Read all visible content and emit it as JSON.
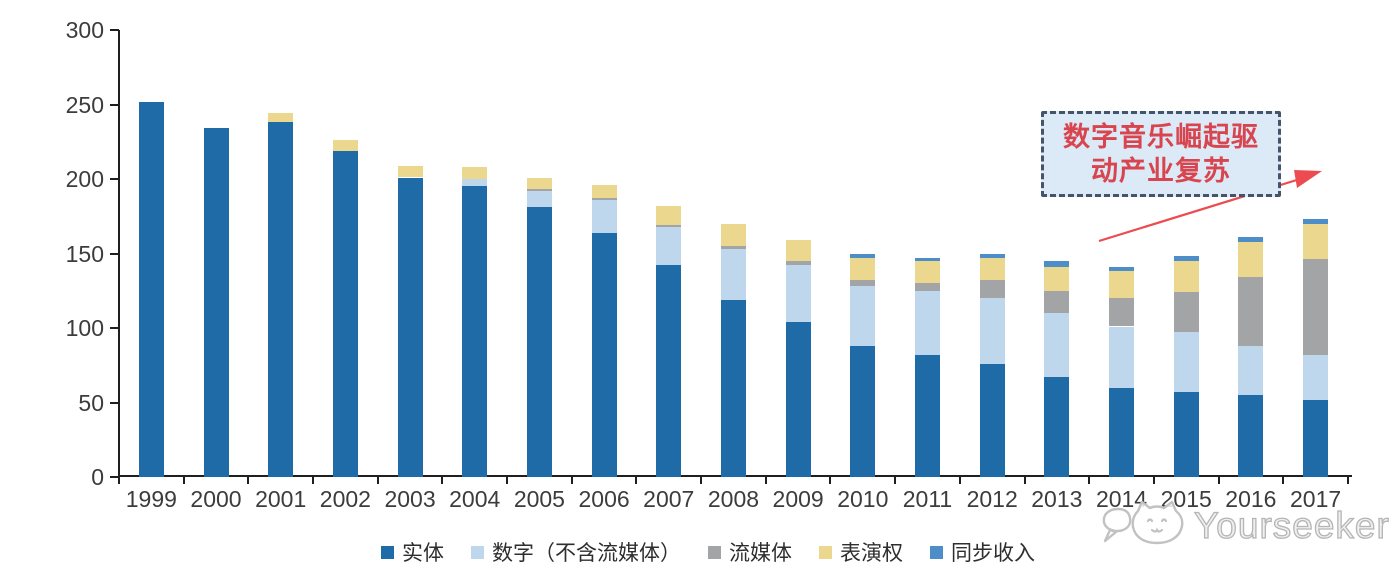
{
  "page": {
    "background": "#ffffff"
  },
  "chart_data": {
    "type": "bar",
    "stacked": true,
    "title": "",
    "xlabel": "",
    "ylabel": "",
    "ylim": [
      0,
      300
    ],
    "y_ticks": [
      0,
      50,
      100,
      150,
      200,
      250,
      300
    ],
    "grid": false,
    "legend_position": "bottom",
    "categories": [
      "1999",
      "2000",
      "2001",
      "2002",
      "2003",
      "2004",
      "2005",
      "2006",
      "2007",
      "2008",
      "2009",
      "2010",
      "2011",
      "2012",
      "2013",
      "2014",
      "2015",
      "2016",
      "2017"
    ],
    "series": [
      {
        "name": "实体",
        "color": "#1e6ba8",
        "values": [
          252,
          234,
          238,
          219,
          201,
          195,
          181,
          164,
          142,
          119,
          104,
          88,
          82,
          76,
          67,
          60,
          57,
          55,
          52
        ]
      },
      {
        "name": "数字（不含流媒体）",
        "color": "#bfd7ed",
        "values": [
          0,
          0,
          0,
          0,
          0,
          5,
          11,
          22,
          26,
          34,
          38,
          40,
          43,
          44,
          43,
          41,
          40,
          33,
          30
        ]
      },
      {
        "name": "流媒体",
        "color": "#a3a4a6",
        "values": [
          0,
          0,
          0,
          0,
          0,
          0,
          1,
          1,
          1,
          2,
          3,
          4,
          5,
          12,
          15,
          19,
          27,
          46,
          64
        ]
      },
      {
        "name": "表演权",
        "color": "#ebd78e",
        "values": [
          0,
          0,
          6,
          7,
          8,
          8,
          8,
          9,
          13,
          15,
          14,
          15,
          15,
          15,
          16,
          18,
          21,
          24,
          24
        ]
      },
      {
        "name": "同步收入",
        "color": "#4d8ec8",
        "values": [
          0,
          0,
          0,
          0,
          0,
          0,
          0,
          0,
          0,
          0,
          0,
          3,
          2,
          3,
          4,
          3,
          3,
          3,
          3
        ]
      }
    ]
  },
  "annotation": {
    "line1": "数字音乐崛起驱",
    "line2": "动产业复苏",
    "text_color": "#d8454e",
    "border_color": "#44546a",
    "fill_color": "#dce9f6",
    "arrow_color": "#ec4b4f"
  },
  "watermark": {
    "text": "Yourseeker"
  }
}
